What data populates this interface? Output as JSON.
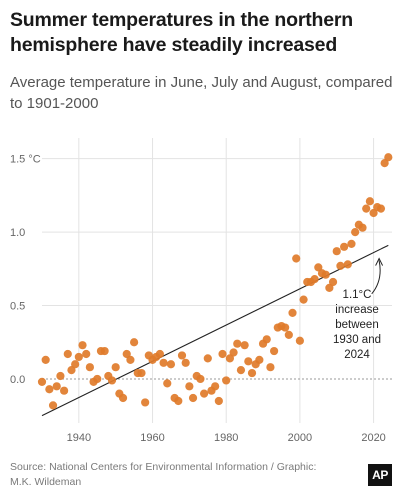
{
  "title": "Summer temperatures in the northern hemisphere have steadily increased",
  "subtitle": "Average temperature in June, July and August, compared to 1901-2000",
  "source": "Source: National Centers for Environmental Information / Graphic: M.K. Wildeman",
  "logo_text": "AP",
  "colors": {
    "points": "#e07b2a",
    "trend": "#222222",
    "grid": "#e3e3e3",
    "zero": "#9a9a9a"
  },
  "chart_data": {
    "type": "scatter",
    "xlim": [
      1930,
      2025
    ],
    "ylim": [
      -0.3,
      1.6
    ],
    "x_ticks": [
      {
        "value": 1940,
        "label": "1940"
      },
      {
        "value": 1960,
        "label": "1960"
      },
      {
        "value": 1980,
        "label": "1980"
      },
      {
        "value": 2000,
        "label": "2000"
      },
      {
        "value": 2020,
        "label": "2020"
      }
    ],
    "y_ticks": [
      {
        "value": 0.0,
        "label": "0.0"
      },
      {
        "value": 0.5,
        "label": "0.5"
      },
      {
        "value": 1.0,
        "label": "1.0"
      },
      {
        "value": 1.5,
        "label": "1.5 °C"
      }
    ],
    "grid": true,
    "trend_line": [
      [
        1930,
        -0.25
      ],
      [
        2024,
        0.91
      ]
    ],
    "annotation": {
      "lines": [
        "1.1°C",
        "increase",
        "between",
        "1930 and",
        "2024"
      ],
      "arrow_to": [
        2021.5,
        0.82
      ]
    },
    "points": [
      [
        1930,
        -0.02
      ],
      [
        1931,
        0.13
      ],
      [
        1932,
        -0.07
      ],
      [
        1933,
        -0.18
      ],
      [
        1934,
        -0.05
      ],
      [
        1935,
        0.02
      ],
      [
        1936,
        -0.08
      ],
      [
        1937,
        0.17
      ],
      [
        1938,
        0.06
      ],
      [
        1939,
        0.1
      ],
      [
        1940,
        0.15
      ],
      [
        1941,
        0.23
      ],
      [
        1942,
        0.17
      ],
      [
        1943,
        0.08
      ],
      [
        1944,
        -0.02
      ],
      [
        1945,
        0.0
      ],
      [
        1946,
        0.19
      ],
      [
        1947,
        0.19
      ],
      [
        1948,
        0.02
      ],
      [
        1949,
        -0.01
      ],
      [
        1950,
        0.08
      ],
      [
        1951,
        -0.1
      ],
      [
        1952,
        -0.13
      ],
      [
        1953,
        0.17
      ],
      [
        1954,
        0.13
      ],
      [
        1955,
        0.25
      ],
      [
        1956,
        0.04
      ],
      [
        1957,
        0.04
      ],
      [
        1958,
        -0.16
      ],
      [
        1959,
        0.16
      ],
      [
        1960,
        0.13
      ],
      [
        1961,
        0.15
      ],
      [
        1962,
        0.17
      ],
      [
        1963,
        0.11
      ],
      [
        1964,
        -0.03
      ],
      [
        1965,
        0.1
      ],
      [
        1966,
        -0.13
      ],
      [
        1967,
        -0.15
      ],
      [
        1968,
        0.16
      ],
      [
        1969,
        0.11
      ],
      [
        1970,
        -0.05
      ],
      [
        1971,
        -0.13
      ],
      [
        1972,
        0.02
      ],
      [
        1973,
        0.0
      ],
      [
        1974,
        -0.1
      ],
      [
        1975,
        0.14
      ],
      [
        1976,
        -0.08
      ],
      [
        1977,
        -0.05
      ],
      [
        1978,
        -0.15
      ],
      [
        1979,
        0.17
      ],
      [
        1980,
        -0.01
      ],
      [
        1981,
        0.14
      ],
      [
        1982,
        0.18
      ],
      [
        1983,
        0.24
      ],
      [
        1984,
        0.06
      ],
      [
        1985,
        0.23
      ],
      [
        1986,
        0.12
      ],
      [
        1987,
        0.04
      ],
      [
        1988,
        0.1
      ],
      [
        1989,
        0.13
      ],
      [
        1990,
        0.24
      ],
      [
        1991,
        0.27
      ],
      [
        1992,
        0.08
      ],
      [
        1993,
        0.19
      ],
      [
        1994,
        0.35
      ],
      [
        1995,
        0.36
      ],
      [
        1996,
        0.35
      ],
      [
        1997,
        0.3
      ],
      [
        1998,
        0.45
      ],
      [
        1999,
        0.82
      ],
      [
        2000,
        0.26
      ],
      [
        2001,
        0.54
      ],
      [
        2002,
        0.66
      ],
      [
        2003,
        0.66
      ],
      [
        2004,
        0.68
      ],
      [
        2005,
        0.76
      ],
      [
        2006,
        0.72
      ],
      [
        2007,
        0.71
      ],
      [
        2008,
        0.62
      ],
      [
        2009,
        0.66
      ],
      [
        2010,
        0.87
      ],
      [
        2011,
        0.77
      ],
      [
        2012,
        0.9
      ],
      [
        2013,
        0.78
      ],
      [
        2014,
        0.92
      ],
      [
        2015,
        1.0
      ],
      [
        2016,
        1.05
      ],
      [
        2017,
        1.03
      ],
      [
        2018,
        1.16
      ],
      [
        2019,
        1.21
      ],
      [
        2020,
        1.13
      ],
      [
        2021,
        1.17
      ],
      [
        2022,
        1.16
      ],
      [
        2023,
        1.47
      ],
      [
        2024,
        1.51
      ]
    ]
  }
}
